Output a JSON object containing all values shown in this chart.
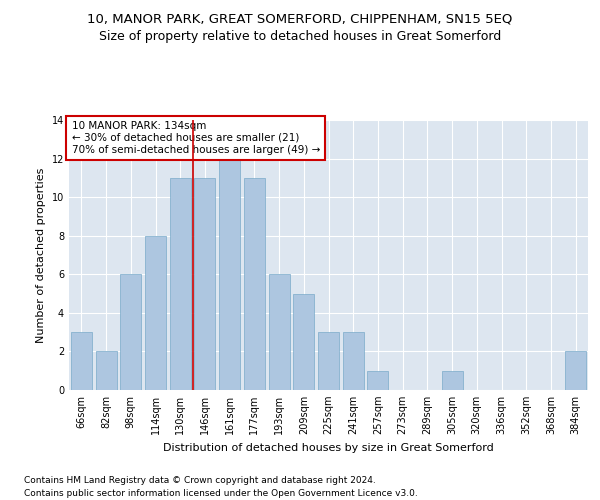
{
  "title": "10, MANOR PARK, GREAT SOMERFORD, CHIPPENHAM, SN15 5EQ",
  "subtitle": "Size of property relative to detached houses in Great Somerford",
  "xlabel": "Distribution of detached houses by size in Great Somerford",
  "ylabel": "Number of detached properties",
  "categories": [
    "66sqm",
    "82sqm",
    "98sqm",
    "114sqm",
    "130sqm",
    "146sqm",
    "161sqm",
    "177sqm",
    "193sqm",
    "209sqm",
    "225sqm",
    "241sqm",
    "257sqm",
    "273sqm",
    "289sqm",
    "305sqm",
    "320sqm",
    "336sqm",
    "352sqm",
    "368sqm",
    "384sqm"
  ],
  "values": [
    3,
    2,
    6,
    8,
    11,
    11,
    12,
    11,
    6,
    5,
    3,
    3,
    1,
    0,
    0,
    1,
    0,
    0,
    0,
    0,
    2
  ],
  "bar_color": "#adc6e0",
  "bar_edge_color": "#7aaaca",
  "reference_line_x": 4.5,
  "reference_line_color": "#cc0000",
  "annotation_text": "10 MANOR PARK: 134sqm\n← 30% of detached houses are smaller (21)\n70% of semi-detached houses are larger (49) →",
  "annotation_box_color": "#ffffff",
  "annotation_box_edge_color": "#cc0000",
  "ylim": [
    0,
    14
  ],
  "yticks": [
    0,
    2,
    4,
    6,
    8,
    10,
    12,
    14
  ],
  "footer_line1": "Contains HM Land Registry data © Crown copyright and database right 2024.",
  "footer_line2": "Contains public sector information licensed under the Open Government Licence v3.0.",
  "bg_color": "#dde6f0",
  "fig_bg_color": "#ffffff",
  "title_fontsize": 9.5,
  "subtitle_fontsize": 9,
  "tick_fontsize": 7,
  "label_fontsize": 8,
  "footer_fontsize": 6.5,
  "annotation_fontsize": 7.5
}
